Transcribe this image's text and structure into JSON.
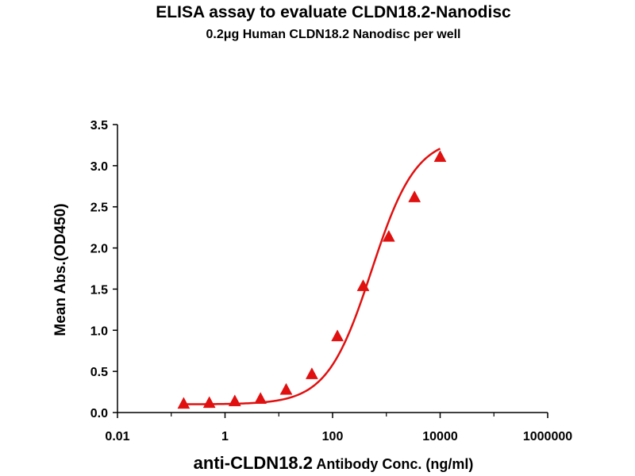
{
  "chart_data": {
    "type": "scatter",
    "title": "ELISA assay to evaluate CLDN18.2-Nanodisc",
    "subtitle": "0.2μg Human CLDN18.2 Nanodisc per well",
    "xlabel_main": "anti-CLDN18.2",
    "xlabel_rest": " Antibody Conc. (ng/ml)",
    "ylabel": "Mean Abs.(OD450)",
    "x_scale": "log",
    "xlim": [
      0.01,
      1000000
    ],
    "ylim": [
      0,
      3.5
    ],
    "x_ticks": [
      {
        "value": 0.01,
        "label": "0.01"
      },
      {
        "value": 1,
        "label": "1"
      },
      {
        "value": 100,
        "label": "100"
      },
      {
        "value": 10000,
        "label": "10000"
      },
      {
        "value": 1000000,
        "label": "1000000"
      }
    ],
    "y_ticks": [
      {
        "value": 0,
        "label": "0.0"
      },
      {
        "value": 0.5,
        "label": "0.5"
      },
      {
        "value": 1,
        "label": "1.0"
      },
      {
        "value": 1.5,
        "label": "1.5"
      },
      {
        "value": 2,
        "label": "2.0"
      },
      {
        "value": 2.5,
        "label": "2.5"
      },
      {
        "value": 3,
        "label": "3.0"
      },
      {
        "value": 3.5,
        "label": "3.5"
      }
    ],
    "grid": false,
    "marker": "triangle",
    "color": "#e01010",
    "series": [
      {
        "points": [
          {
            "x": 0.17,
            "y": 0.1
          },
          {
            "x": 0.51,
            "y": 0.11
          },
          {
            "x": 1.52,
            "y": 0.13
          },
          {
            "x": 4.57,
            "y": 0.16
          },
          {
            "x": 13.7,
            "y": 0.27
          },
          {
            "x": 41.2,
            "y": 0.46
          },
          {
            "x": 123,
            "y": 0.92
          },
          {
            "x": 370,
            "y": 1.53
          },
          {
            "x": 1111,
            "y": 2.13
          },
          {
            "x": 3333,
            "y": 2.61
          },
          {
            "x": 10000,
            "y": 3.1
          }
        ],
        "fit_curve": {
          "model": "4PL",
          "bottom": 0.1,
          "top": 3.35,
          "ec50": 530,
          "hill": 1.05,
          "x_range": [
            0.17,
            10000
          ]
        }
      }
    ]
  }
}
